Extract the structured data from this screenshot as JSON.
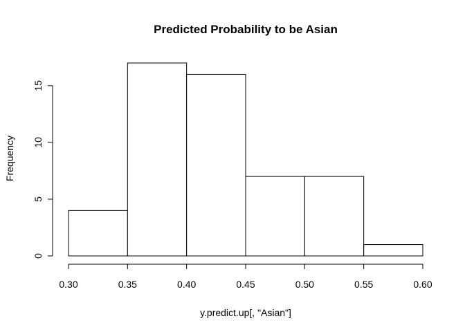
{
  "chart_data": {
    "type": "bar",
    "title": "Predicted Probability to be Asian",
    "xlabel": "y.predict.up[, \"Asian\"]",
    "ylabel": "Frequency",
    "bins": [
      {
        "from": 0.3,
        "to": 0.35,
        "count": 4
      },
      {
        "from": 0.35,
        "to": 0.4,
        "count": 17
      },
      {
        "from": 0.4,
        "to": 0.45,
        "count": 16
      },
      {
        "from": 0.45,
        "to": 0.5,
        "count": 7
      },
      {
        "from": 0.5,
        "to": 0.55,
        "count": 7
      },
      {
        "from": 0.55,
        "to": 0.6,
        "count": 1
      }
    ],
    "xlim": [
      0.3,
      0.6
    ],
    "ylim": [
      0,
      17
    ],
    "xticks": [
      "0.30",
      "0.35",
      "0.40",
      "0.45",
      "0.50",
      "0.55",
      "0.60"
    ],
    "yticks": [
      0,
      5,
      10,
      15
    ],
    "grid": false,
    "bar_fill": "#ffffff",
    "bar_stroke": "#000000"
  }
}
